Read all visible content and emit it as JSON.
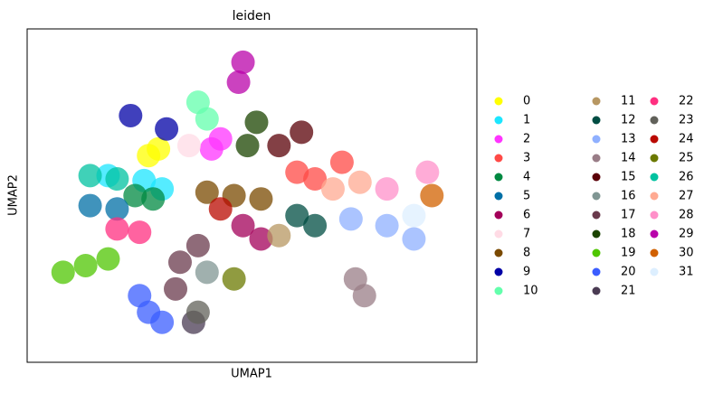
{
  "chart_data": {
    "type": "scatter",
    "title": "leiden",
    "xlabel": "UMAP1",
    "ylabel": "UMAP2",
    "xlim": [
      0,
      100
    ],
    "ylim": [
      0,
      100
    ],
    "series": [
      {
        "name": "0",
        "color": "#FFFF00",
        "x": [
          29.2,
          27
        ],
        "values": [
          64,
          62
        ]
      },
      {
        "name": "1",
        "color": "#1CE6FF",
        "x": [
          26,
          18,
          30
        ],
        "values": [
          54.5,
          56,
          52
        ]
      },
      {
        "name": "2",
        "color": "#FF34FF",
        "x": [
          41,
          43
        ],
        "values": [
          64,
          67
        ]
      },
      {
        "name": "3",
        "color": "#FF4A46",
        "x": [
          60,
          70,
          64
        ],
        "values": [
          57,
          60,
          55
        ]
      },
      {
        "name": "4",
        "color": "#008941",
        "x": [
          24,
          28
        ],
        "values": [
          50,
          49
        ]
      },
      {
        "name": "5",
        "color": "#006FA6",
        "x": [
          20,
          14
        ],
        "values": [
          46,
          47
        ]
      },
      {
        "name": "6",
        "color": "#A30059",
        "x": [
          48,
          52
        ],
        "values": [
          41,
          37
        ]
      },
      {
        "name": "7",
        "color": "#FFDBE5",
        "x": [
          36
        ],
        "values": [
          65
        ]
      },
      {
        "name": "8",
        "color": "#7A4900",
        "x": [
          46,
          40,
          52
        ],
        "values": [
          50,
          51,
          49
        ]
      },
      {
        "name": "9",
        "color": "#0000A6",
        "x": [
          23,
          31
        ],
        "values": [
          74,
          70
        ]
      },
      {
        "name": "10",
        "color": "#63FFAC",
        "x": [
          40,
          38
        ],
        "values": [
          73,
          78
        ]
      },
      {
        "name": "11",
        "color": "#B79762",
        "x": [
          56
        ],
        "values": [
          38
        ]
      },
      {
        "name": "12",
        "color": "#004D43",
        "x": [
          60,
          64
        ],
        "values": [
          44,
          41
        ]
      },
      {
        "name": "13",
        "color": "#8FB0FF",
        "x": [
          72,
          80,
          86
        ],
        "values": [
          43,
          41,
          37
        ]
      },
      {
        "name": "14",
        "color": "#997D87",
        "x": [
          73,
          75
        ],
        "values": [
          25,
          20
        ]
      },
      {
        "name": "15",
        "color": "#5A0007",
        "x": [
          56,
          61
        ],
        "values": [
          65,
          69
        ]
      },
      {
        "name": "16",
        "color": "#809693",
        "x": [
          40
        ],
        "values": [
          27
        ]
      },
      {
        "name": "17",
        "color": "#6A3A4C",
        "x": [
          34,
          33,
          38
        ],
        "values": [
          30,
          22,
          35
        ]
      },
      {
        "name": "18",
        "color": "#1B4400",
        "x": [
          49,
          51
        ],
        "values": [
          65,
          72
        ]
      },
      {
        "name": "19",
        "color": "#4FC601",
        "x": [
          13,
          8,
          18
        ],
        "values": [
          29,
          27,
          31
        ]
      },
      {
        "name": "20",
        "color": "#3B5DFF",
        "x": [
          27,
          25,
          30
        ],
        "values": [
          15,
          20,
          12
        ]
      },
      {
        "name": "21",
        "color": "#4A3B53",
        "x": [
          37
        ],
        "values": [
          12
        ]
      },
      {
        "name": "22",
        "color": "#FF2F80",
        "x": [
          20,
          25
        ],
        "values": [
          40,
          39
        ]
      },
      {
        "name": "23",
        "color": "#61615A",
        "x": [
          38
        ],
        "values": [
          15
        ]
      },
      {
        "name": "24",
        "color": "#BA0900",
        "x": [
          43
        ],
        "values": [
          46
        ]
      },
      {
        "name": "25",
        "color": "#6B7900",
        "x": [
          46
        ],
        "values": [
          25
        ]
      },
      {
        "name": "26",
        "color": "#00C2A0",
        "x": [
          14,
          20
        ],
        "values": [
          56,
          55
        ]
      },
      {
        "name": "27",
        "color": "#FFAA92",
        "x": [
          74,
          68
        ],
        "values": [
          54,
          52
        ]
      },
      {
        "name": "28",
        "color": "#FF90C9",
        "x": [
          89,
          80
        ],
        "values": [
          57,
          52
        ]
      },
      {
        "name": "29",
        "color": "#B903AA",
        "x": [
          48,
          47
        ],
        "values": [
          90,
          84
        ]
      },
      {
        "name": "30",
        "color": "#D16100",
        "x": [
          90
        ],
        "values": [
          50
        ]
      },
      {
        "name": "31",
        "color": "#DDEFFF",
        "x": [
          86
        ],
        "values": [
          44
        ]
      }
    ]
  }
}
